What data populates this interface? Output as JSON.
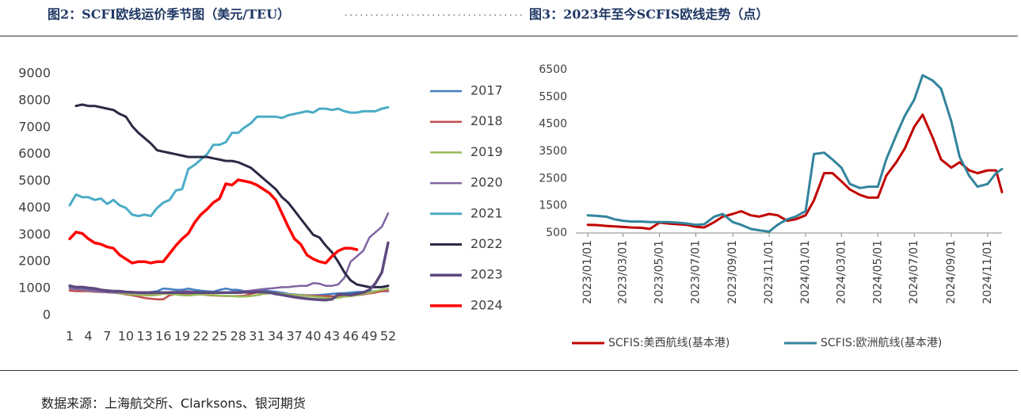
{
  "chart_data": [
    {
      "type": "line",
      "title": "图2：SCFI欧线运价季节图（美元/TEU）",
      "legend": "right",
      "grid": false,
      "x": [
        1,
        2,
        3,
        4,
        5,
        6,
        7,
        8,
        9,
        10,
        11,
        12,
        13,
        14,
        15,
        16,
        17,
        18,
        19,
        20,
        21,
        22,
        23,
        24,
        25,
        26,
        27,
        28,
        29,
        30,
        31,
        32,
        33,
        34,
        35,
        36,
        37,
        38,
        39,
        40,
        41,
        42,
        43,
        44,
        45,
        46,
        47,
        48,
        49,
        50,
        51,
        52
      ],
      "xlim": [
        1,
        52
      ],
      "xticks": [
        1,
        4,
        7,
        10,
        13,
        16,
        19,
        22,
        25,
        28,
        31,
        34,
        37,
        40,
        43,
        46,
        49,
        52
      ],
      "ylim": [
        0,
        9000
      ],
      "yticks": [
        0,
        1000,
        2000,
        3000,
        4000,
        5000,
        6000,
        7000,
        8000,
        9000
      ],
      "series": [
        {
          "name": "2017",
          "color": "#3f7fc0",
          "width": 2.5,
          "values": [
            1050,
            1000,
            1000,
            980,
            950,
            920,
            900,
            900,
            880,
            850,
            850,
            850,
            850,
            870,
            900,
            1000,
            980,
            950,
            950,
            1000,
            950,
            920,
            900,
            880,
            950,
            1000,
            950,
            950,
            900,
            900,
            920,
            950,
            900,
            880,
            850,
            800,
            780,
            760,
            750,
            750,
            760,
            780,
            800,
            820,
            830,
            850,
            870,
            880,
            890,
            900,
            900,
            900
          ]
        },
        {
          "name": "2018",
          "color": "#c0504d",
          "width": 2.5,
          "values": [
            920,
            900,
            900,
            900,
            880,
            870,
            860,
            850,
            820,
            780,
            750,
            700,
            650,
            620,
            600,
            600,
            750,
            800,
            800,
            820,
            800,
            780,
            760,
            740,
            730,
            720,
            720,
            720,
            730,
            800,
            850,
            850,
            850,
            830,
            800,
            780,
            760,
            750,
            740,
            730,
            720,
            720,
            710,
            700,
            700,
            720,
            750,
            780,
            820,
            850,
            900,
            920
          ]
        },
        {
          "name": "2019",
          "color": "#9bbb59",
          "width": 2.5,
          "values": [
            1000,
            980,
            950,
            920,
            900,
            880,
            860,
            850,
            820,
            800,
            780,
            760,
            750,
            740,
            760,
            800,
            800,
            780,
            750,
            740,
            760,
            780,
            780,
            760,
            740,
            730,
            720,
            700,
            700,
            720,
            750,
            800,
            820,
            820,
            800,
            780,
            760,
            740,
            720,
            700,
            680,
            650,
            640,
            650,
            700,
            720,
            750,
            800,
            850,
            900,
            950,
            1000
          ]
        },
        {
          "name": "2020",
          "color": "#8064a2",
          "width": 2.5,
          "values": [
            1000,
            980,
            950,
            930,
            900,
            880,
            860,
            850,
            850,
            850,
            840,
            830,
            820,
            820,
            830,
            850,
            870,
            880,
            900,
            900,
            880,
            860,
            850,
            850,
            850,
            860,
            870,
            880,
            900,
            920,
            950,
            980,
            1000,
            1020,
            1050,
            1050,
            1080,
            1100,
            1100,
            1200,
            1180,
            1100,
            1100,
            1150,
            1400,
            2000,
            2200,
            2400,
            2900,
            3100,
            3300,
            3800
          ]
        },
        {
          "name": "2021",
          "color": "#4bacc6",
          "width": 3,
          "values": [
            4100,
            4500,
            4400,
            4400,
            4300,
            4350,
            4150,
            4300,
            4100,
            4000,
            3750,
            3700,
            3750,
            3700,
            4000,
            4200,
            4300,
            4650,
            4700,
            5450,
            5600,
            5800,
            6000,
            6350,
            6350,
            6450,
            6800,
            6800,
            7000,
            7150,
            7400,
            7400,
            7400,
            7400,
            7350,
            7450,
            7500,
            7550,
            7600,
            7550,
            7700,
            7700,
            7650,
            7700,
            7600,
            7550,
            7550,
            7600,
            7600,
            7600,
            7700,
            7750
          ]
        },
        {
          "name": "2022",
          "color": "#2b2a45",
          "width": 3,
          "values": [
            null,
            7800,
            7850,
            7800,
            7800,
            7750,
            7700,
            7650,
            7500,
            7400,
            7050,
            6800,
            6600,
            6400,
            6150,
            6100,
            6050,
            6000,
            5950,
            5900,
            5900,
            5900,
            5900,
            5850,
            5800,
            5750,
            5750,
            5700,
            5600,
            5500,
            5300,
            5100,
            4900,
            4700,
            4400,
            4200,
            3900,
            3600,
            3300,
            3000,
            2900,
            2600,
            2350,
            2000,
            1600,
            1300,
            1150,
            1100,
            1050,
            1050,
            1050,
            1100
          ]
        },
        {
          "name": "2023",
          "color": "#5e4a7e",
          "width": 3.5,
          "values": [
            1100,
            1050,
            1050,
            1020,
            1000,
            950,
            920,
            900,
            900,
            870,
            860,
            850,
            850,
            850,
            850,
            850,
            850,
            850,
            850,
            850,
            850,
            850,
            850,
            850,
            850,
            850,
            850,
            850,
            860,
            860,
            870,
            870,
            850,
            800,
            760,
            720,
            680,
            650,
            620,
            600,
            580,
            570,
            600,
            780,
            780,
            760,
            800,
            850,
            950,
            1200,
            1600,
            2700
          ]
        },
        {
          "name": "2024",
          "color": "#ff0000",
          "width": 3.5,
          "values": [
            2850,
            3100,
            3050,
            2850,
            2700,
            2650,
            2550,
            2500,
            2250,
            2100,
            1950,
            2000,
            2000,
            1950,
            2000,
            2000,
            2300,
            2600,
            2850,
            3050,
            3450,
            3750,
            3950,
            4200,
            4350,
            4900,
            4850,
            5050,
            5000,
            4950,
            4850,
            4700,
            4550,
            4300,
            3800,
            3300,
            2850,
            2650,
            2250,
            2100,
            2000,
            1950,
            2200,
            2400,
            2500,
            2500,
            2450,
            null,
            null,
            null,
            null,
            null
          ]
        }
      ]
    },
    {
      "type": "line",
      "title": "图3：2023年至今SCFIS欧线走势（点）",
      "legend": "bottom",
      "grid": false,
      "x": [
        "2023/01/01",
        "2023/01/15",
        "2023/02/01",
        "2023/02/15",
        "2023/03/01",
        "2023/03/15",
        "2023/04/01",
        "2023/04/15",
        "2023/05/01",
        "2023/05/15",
        "2023/06/01",
        "2023/06/15",
        "2023/07/01",
        "2023/07/15",
        "2023/08/01",
        "2023/08/15",
        "2023/09/01",
        "2023/09/15",
        "2023/10/01",
        "2023/10/15",
        "2023/11/01",
        "2023/11/15",
        "2023/12/01",
        "2023/12/15",
        "2024/01/01",
        "2024/01/15",
        "2024/02/01",
        "2024/02/15",
        "2024/03/01",
        "2024/03/15",
        "2024/04/01",
        "2024/04/15",
        "2024/05/01",
        "2024/05/15",
        "2024/06/01",
        "2024/06/15",
        "2024/07/01",
        "2024/07/15",
        "2024/08/01",
        "2024/08/15",
        "2024/09/01",
        "2024/09/15",
        "2024/10/01",
        "2024/10/15",
        "2024/11/01",
        "2024/11/15",
        "2024/11/25"
      ],
      "xlim": [
        "2022/12/12",
        "2024/11/25"
      ],
      "xticks": [
        "2023/01/01",
        "2023/03/01",
        "2023/05/01",
        "2023/07/01",
        "2023/09/01",
        "2023/11/01",
        "2024/01/01",
        "2024/03/01",
        "2024/05/01",
        "2024/07/01",
        "2024/09/01",
        "2024/11/01"
      ],
      "ylim": [
        500,
        6500
      ],
      "yticks": [
        500,
        1500,
        2500,
        3500,
        4500,
        5500,
        6500
      ],
      "series": [
        {
          "name": "SCFIS:美西航线(基本港)",
          "color": "#c00000",
          "width": 3,
          "values": [
            800,
            790,
            760,
            740,
            720,
            700,
            690,
            650,
            880,
            850,
            820,
            800,
            730,
            700,
            900,
            1100,
            1200,
            1300,
            1150,
            1100,
            1200,
            1150,
            950,
            1000,
            1150,
            1700,
            2700,
            2700,
            2400,
            2100,
            1900,
            1800,
            1800,
            2600,
            3100,
            3600,
            4400,
            4850,
            4000,
            3200,
            2900,
            3100,
            2800,
            2700,
            2800,
            2800,
            2000
          ]
        },
        {
          "name": "SCFIS:欧洲航线(基本港)",
          "color": "#31849b",
          "width": 3,
          "values": [
            1150,
            1130,
            1100,
            1000,
            950,
            920,
            920,
            900,
            900,
            900,
            880,
            850,
            800,
            820,
            1100,
            1200,
            900,
            800,
            650,
            600,
            550,
            800,
            1000,
            1100,
            1300,
            3400,
            3450,
            3200,
            2900,
            2300,
            2150,
            2200,
            2200,
            3200,
            4100,
            4800,
            5400,
            6300,
            6100,
            5800,
            4600,
            3300,
            2600,
            2200,
            2300,
            2700,
            2850
          ]
        }
      ]
    }
  ],
  "source": "数据来源：上海航交所、Clarksons、银河期货"
}
